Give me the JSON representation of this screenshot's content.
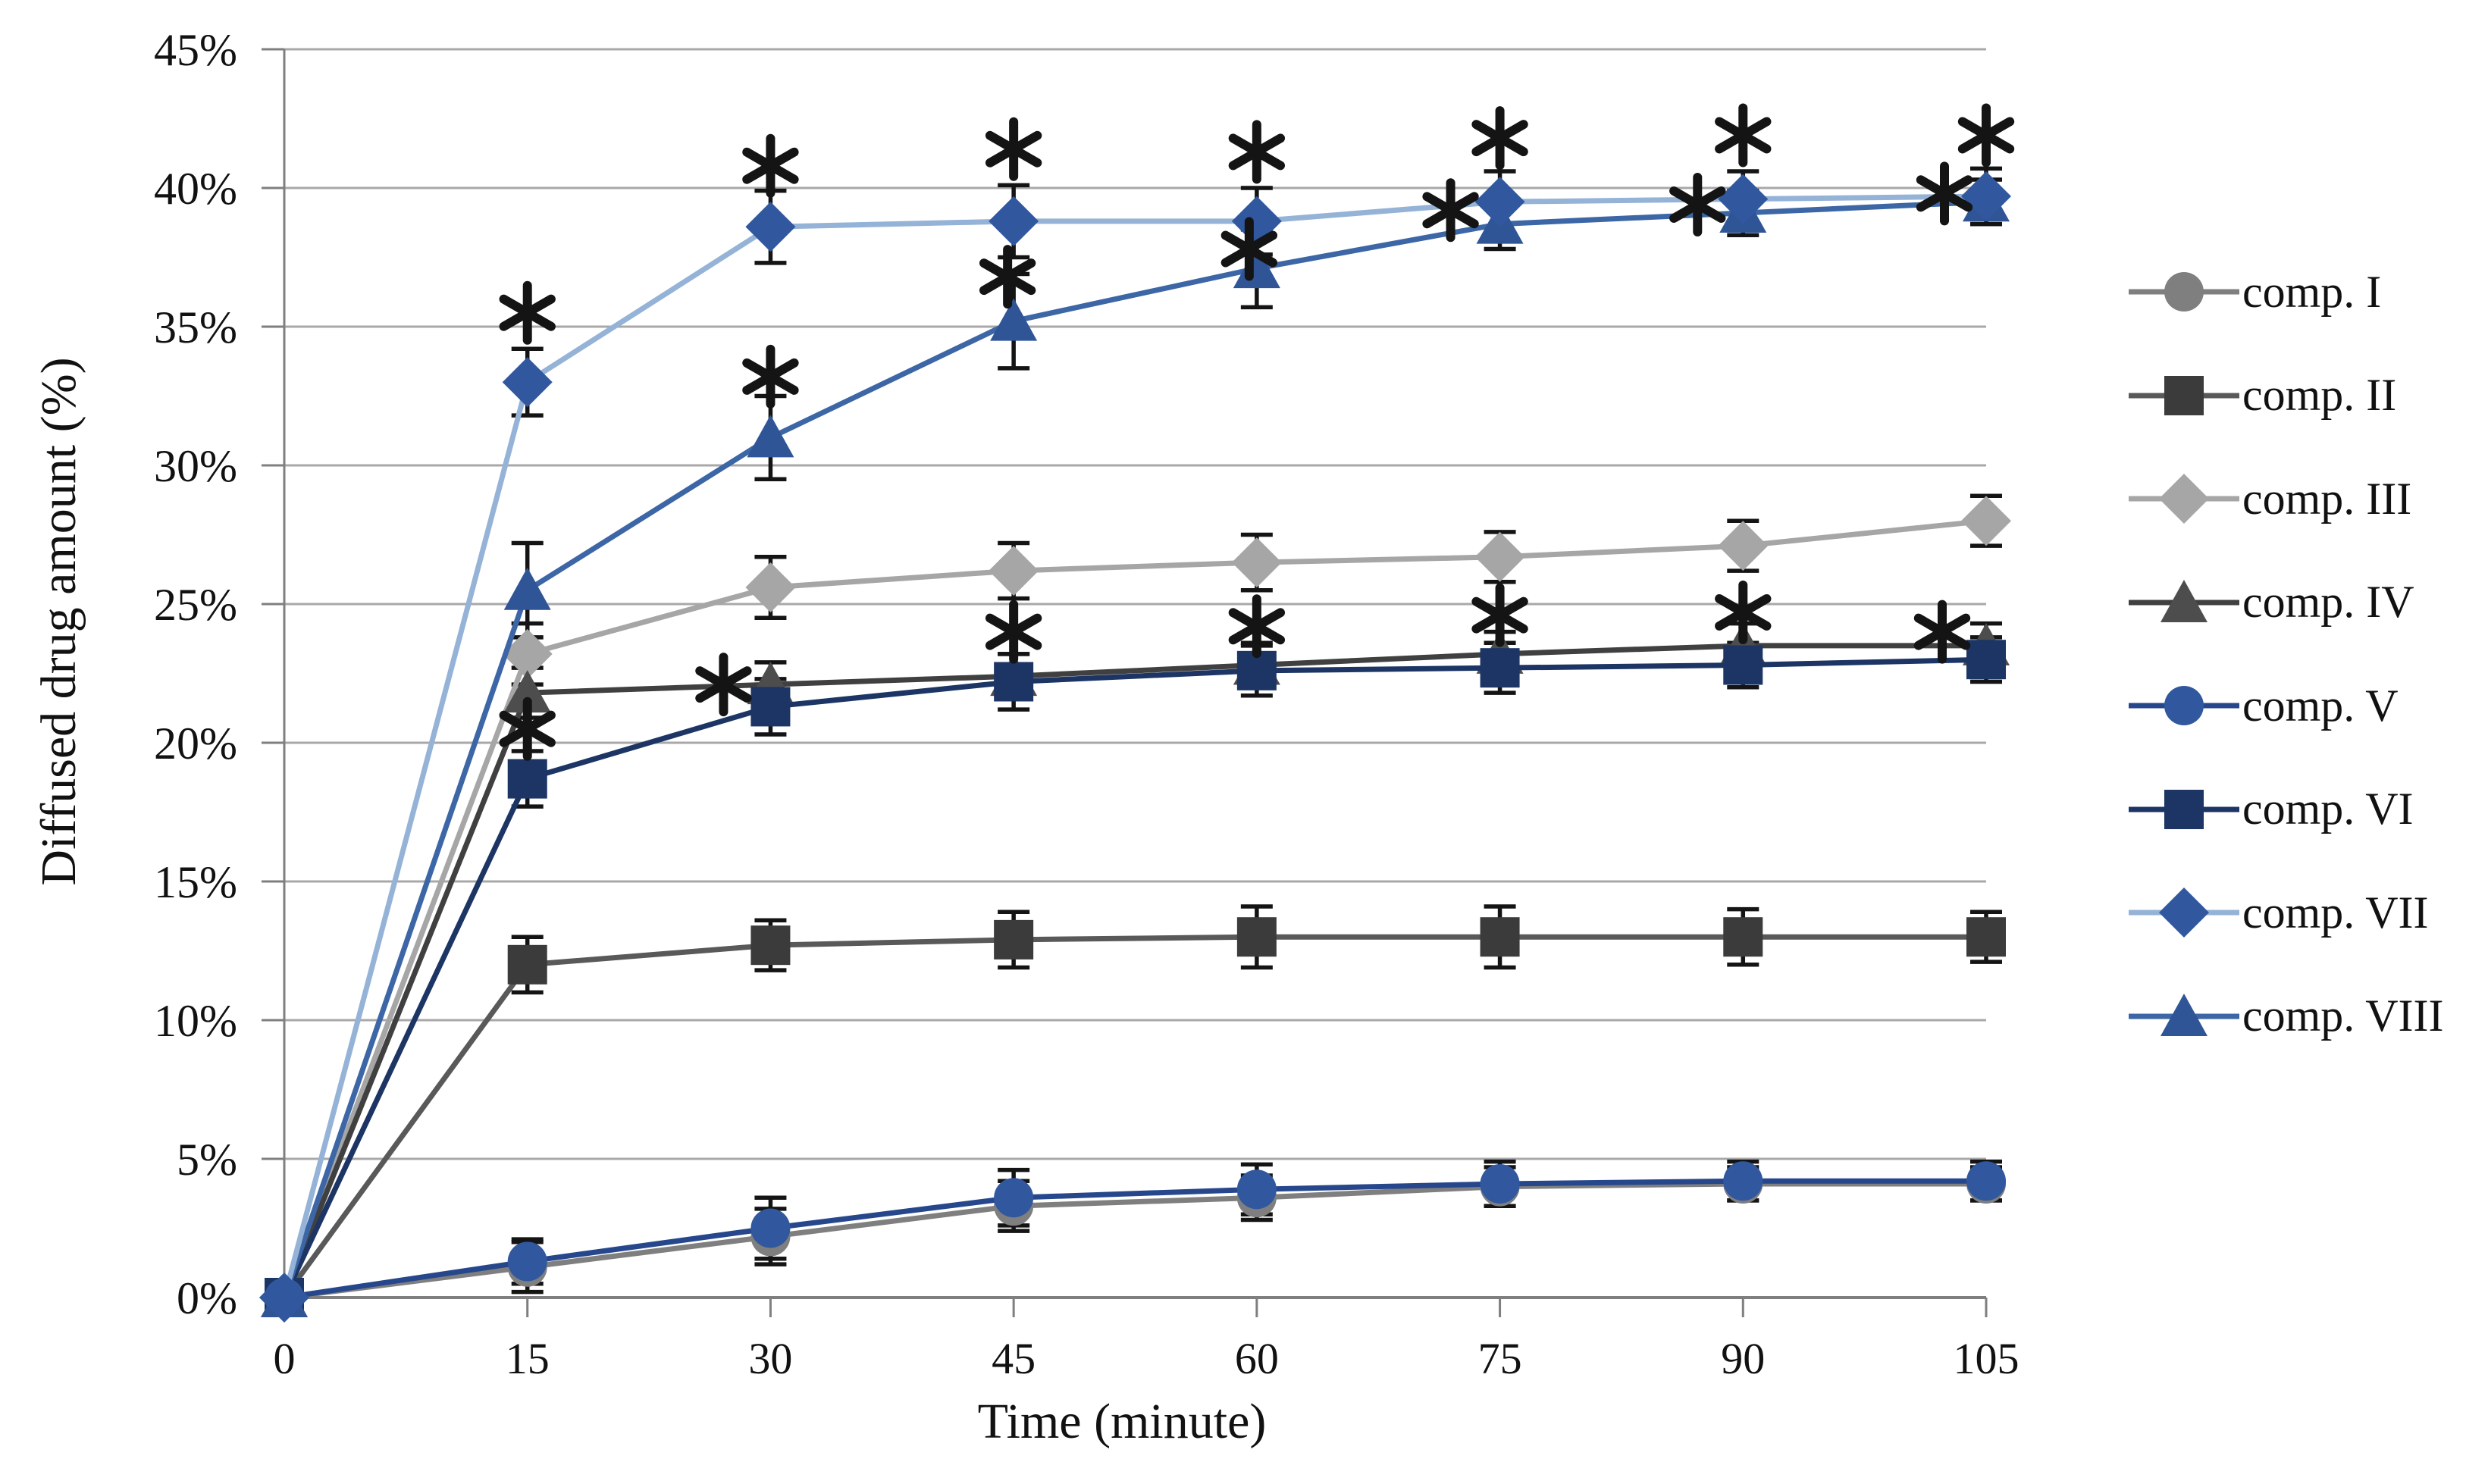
{
  "chart_data": {
    "type": "line",
    "title": "",
    "xlabel": "Time (minute)",
    "ylabel": "Diffused drug amount (%)",
    "x": [
      0,
      15,
      30,
      45,
      60,
      75,
      90,
      105
    ],
    "xtick_labels": [
      "0",
      "15",
      "30",
      "45",
      "60",
      "75",
      "90",
      "105"
    ],
    "ytick_values": [
      0,
      5,
      10,
      15,
      20,
      25,
      30,
      35,
      40,
      45
    ],
    "ytick_labels": [
      "0%",
      "5%",
      "10%",
      "15%",
      "20%",
      "25%",
      "30%",
      "35%",
      "40%",
      "45%"
    ],
    "xlim": [
      0,
      105
    ],
    "ylim": [
      0,
      45
    ],
    "grid": "horizontal",
    "legend_position": "right",
    "series": [
      {
        "name": "comp. I",
        "marker": "circle",
        "color": "#7f7f7f",
        "line_color": "#7f7f7f",
        "values": [
          0,
          1.1,
          2.2,
          3.3,
          3.6,
          4.0,
          4.1,
          4.1
        ],
        "errors": [
          0,
          0.9,
          1.0,
          0.9,
          0.8,
          0.7,
          0.6,
          0.6
        ]
      },
      {
        "name": "comp. II",
        "marker": "square",
        "color": "#3b3b3b",
        "line_color": "#595959",
        "values": [
          0,
          12.0,
          12.7,
          12.9,
          13.0,
          13.0,
          13.0,
          13.0
        ],
        "errors": [
          0,
          1.0,
          0.9,
          1.0,
          1.1,
          1.1,
          1.0,
          0.9
        ]
      },
      {
        "name": "comp. III",
        "marker": "diamond",
        "color": "#a6a6a6",
        "line_color": "#a6a6a6",
        "values": [
          0,
          23.2,
          25.6,
          26.2,
          26.5,
          26.7,
          27.1,
          28.0
        ],
        "errors": [
          0,
          1.1,
          1.1,
          1.0,
          1.0,
          0.9,
          0.9,
          0.9
        ]
      },
      {
        "name": "comp. IV",
        "marker": "triangle",
        "color": "#4d4d4d",
        "line_color": "#404040",
        "values": [
          0,
          21.8,
          22.1,
          22.4,
          22.8,
          23.2,
          23.5,
          23.5
        ],
        "errors": [
          0,
          0.9,
          0.8,
          0.8,
          0.8,
          0.8,
          0.8,
          0.8
        ]
      },
      {
        "name": "comp. V",
        "marker": "circle",
        "color": "#31589e",
        "line_color": "#27478c",
        "values": [
          0,
          1.3,
          2.5,
          3.6,
          3.9,
          4.1,
          4.2,
          4.2
        ],
        "errors": [
          0,
          0.8,
          1.1,
          1.0,
          0.9,
          0.8,
          0.7,
          0.7
        ]
      },
      {
        "name": "comp. VI",
        "marker": "square",
        "color": "#1c3564",
        "line_color": "#1c3564",
        "values": [
          0,
          18.7,
          21.3,
          22.2,
          22.6,
          22.7,
          22.8,
          23.0
        ],
        "errors": [
          0,
          1.0,
          1.0,
          1.0,
          0.9,
          0.9,
          0.8,
          0.8
        ]
      },
      {
        "name": "comp. VII",
        "marker": "diamond",
        "color": "#31589e",
        "line_color": "#95b3d7",
        "values": [
          0,
          33.0,
          38.6,
          38.8,
          38.8,
          39.5,
          39.6,
          39.7
        ],
        "errors": [
          0,
          1.2,
          1.3,
          1.3,
          1.2,
          1.1,
          1.0,
          1.0
        ]
      },
      {
        "name": "comp. VIII",
        "marker": "triangle",
        "color": "#2f5597",
        "line_color": "#3c66a5",
        "values": [
          0,
          25.5,
          31.0,
          35.2,
          37.1,
          38.7,
          39.1,
          39.5
        ],
        "errors": [
          0,
          1.7,
          1.5,
          1.7,
          1.4,
          0.9,
          0.8,
          0.8
        ]
      }
    ],
    "annotations": [
      {
        "symbol": "*",
        "series": "comp. VII",
        "t": 15,
        "value": 35.5,
        "dx": 0
      },
      {
        "symbol": "*",
        "series": "comp. VI",
        "t": 15,
        "value": 20.5,
        "dx": 0
      },
      {
        "symbol": "*",
        "series": "comp. VII",
        "t": 30,
        "value": 40.8,
        "dx": 0
      },
      {
        "symbol": "*",
        "series": "comp. VIII",
        "t": 30,
        "value": 33.2,
        "dx": 0
      },
      {
        "symbol": "*",
        "series": "comp. VI",
        "t": 30,
        "value": 22.1,
        "dx": -62
      },
      {
        "symbol": "*",
        "series": "comp. VII",
        "t": 45,
        "value": 41.4,
        "dx": 0
      },
      {
        "symbol": "*",
        "series": "comp. VIII",
        "t": 45,
        "value": 36.8,
        "dx": -8
      },
      {
        "symbol": "*",
        "series": "comp. VI",
        "t": 45,
        "value": 24.0,
        "dx": 0
      },
      {
        "symbol": "*",
        "series": "comp. VII",
        "t": 60,
        "value": 41.3,
        "dx": 0
      },
      {
        "symbol": "*",
        "series": "comp. VIII",
        "t": 60,
        "value": 37.8,
        "dx": -10
      },
      {
        "symbol": "*",
        "series": "comp. VI",
        "t": 60,
        "value": 24.2,
        "dx": 0
      },
      {
        "symbol": "*",
        "series": "comp. VII",
        "t": 75,
        "value": 41.8,
        "dx": 0
      },
      {
        "symbol": "*",
        "series": "comp. VIII",
        "t": 75,
        "value": 39.2,
        "dx": -65
      },
      {
        "symbol": "*",
        "series": "comp. VI",
        "t": 75,
        "value": 24.6,
        "dx": 0
      },
      {
        "symbol": "*",
        "series": "comp. VII",
        "t": 90,
        "value": 41.9,
        "dx": 0
      },
      {
        "symbol": "*",
        "series": "comp. VIII",
        "t": 90,
        "value": 39.4,
        "dx": -60
      },
      {
        "symbol": "*",
        "series": "comp. VI",
        "t": 90,
        "value": 24.7,
        "dx": 0
      },
      {
        "symbol": "*",
        "series": "comp. VII",
        "t": 105,
        "value": 41.9,
        "dx": 0
      },
      {
        "symbol": "*",
        "series": "comp. VIII",
        "t": 105,
        "value": 39.8,
        "dx": -55
      },
      {
        "symbol": "*",
        "series": "comp. VI",
        "t": 105,
        "value": 24.0,
        "dx": -58
      }
    ],
    "colors": {
      "grid": "#a8a8a8",
      "axis": "#7f7f7f",
      "text": "#111111",
      "error_bar": "#141414",
      "annotation": "#141414",
      "background": "#ffffff"
    }
  }
}
